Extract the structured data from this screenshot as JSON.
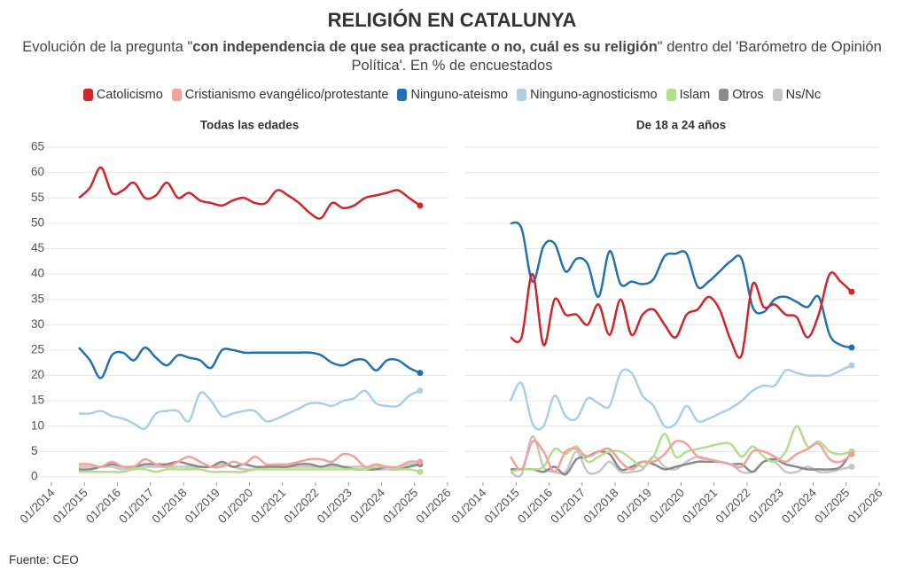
{
  "title": "RELIGIÓN EN CATALUNYA",
  "subtitle_parts": [
    "Evolución de la pregunta \"",
    "con independencia de que sea practicante o no, cuál es su religión",
    "\" dentro del 'Barómetro de Opinión Política'. En % de encuestados"
  ],
  "source": "Fuente: CEO",
  "chart_data": [
    {
      "type": "line",
      "title": "Todas las edades",
      "x": [
        "11/2014",
        "03/2015",
        "07/2015",
        "11/2015",
        "03/2016",
        "07/2016",
        "11/2016",
        "03/2017",
        "07/2017",
        "11/2017",
        "03/2018",
        "07/2018",
        "11/2018",
        "03/2019",
        "07/2019",
        "11/2019",
        "03/2020",
        "07/2020",
        "11/2020",
        "03/2021",
        "07/2021",
        "11/2021",
        "03/2022",
        "07/2022",
        "11/2022",
        "03/2023",
        "07/2023",
        "11/2023",
        "03/2024",
        "07/2024",
        "11/2024",
        "03/2025"
      ],
      "xlim": [
        "01/2014",
        "01/2026"
      ],
      "xticks": [
        "01/2014",
        "01/2015",
        "01/2016",
        "01/2017",
        "01/2018",
        "01/2019",
        "01/2020",
        "01/2021",
        "01/2022",
        "01/2023",
        "01/2024",
        "01/2025",
        "01/2026"
      ],
      "ylim": [
        0,
        65
      ],
      "yticks": [
        0,
        5,
        10,
        15,
        20,
        25,
        30,
        35,
        40,
        45,
        50,
        55,
        60,
        65
      ],
      "grid": true,
      "series": [
        {
          "name": "Catolicismo",
          "color": "#d0262b",
          "values": [
            55,
            57,
            61,
            56,
            56.5,
            58,
            55,
            55.5,
            58,
            55,
            56,
            54.5,
            54,
            53.5,
            54.5,
            55,
            54,
            54,
            56.5,
            55.5,
            54,
            52,
            51,
            54,
            53,
            53.5,
            55,
            55.5,
            56,
            56.5,
            55,
            53.5
          ]
        },
        {
          "name": "Cristianismo evangélico/protestante",
          "color": "#f2a19d",
          "values": [
            2.5,
            2.5,
            2,
            3,
            2,
            2,
            3.5,
            2.5,
            2,
            3,
            4,
            3,
            2,
            2,
            3,
            2.5,
            4,
            2.5,
            2.5,
            2.5,
            3,
            3.5,
            3.5,
            3,
            4.5,
            4,
            2,
            2.5,
            2,
            2,
            3,
            3
          ]
        },
        {
          "name": "Ninguno-ateismo",
          "color": "#2471b0",
          "values": [
            25.5,
            23,
            19.5,
            24,
            24.5,
            23,
            25.5,
            23.5,
            22,
            24,
            23.5,
            23,
            21.5,
            25,
            25,
            24.5,
            24.5,
            24.5,
            24.5,
            24.5,
            24.5,
            24.5,
            24,
            22.5,
            22,
            23,
            23,
            21,
            23,
            23,
            21.5,
            20.5
          ]
        },
        {
          "name": "Ninguno-agnosticismo",
          "color": "#a9d0e6",
          "values": [
            12.5,
            12.5,
            13,
            12,
            11.5,
            10.5,
            9.5,
            12.5,
            13,
            13,
            11,
            16.5,
            15,
            12,
            12.5,
            13,
            13,
            11,
            11.5,
            12.5,
            13.5,
            14.5,
            14.5,
            14,
            15,
            15.5,
            17,
            14.5,
            14,
            14,
            16,
            17
          ]
        },
        {
          "name": "Islam",
          "color": "#b2de8e",
          "values": [
            1,
            1,
            1,
            1,
            1,
            1.5,
            1.5,
            1,
            1.5,
            1.5,
            1.5,
            1.5,
            1,
            1,
            1,
            1,
            1.5,
            1.5,
            1.5,
            1.5,
            1.5,
            1.5,
            1.5,
            1.5,
            1.5,
            1.5,
            1.5,
            2,
            2,
            1.5,
            1.5,
            1
          ]
        },
        {
          "name": "Otros",
          "color": "#8a8a8a",
          "values": [
            1.5,
            1.5,
            2,
            2.5,
            2,
            2,
            2.5,
            2.5,
            2.5,
            3,
            2.5,
            2,
            2,
            3,
            2,
            2.5,
            2,
            2,
            2,
            2,
            2.5,
            2.5,
            2,
            2.5,
            2,
            1.5,
            1.5,
            1.5,
            2,
            1.5,
            2,
            2.5
          ]
        },
        {
          "name": "Ns/Nc",
          "color": "#c6c6c6",
          "values": [
            2,
            2,
            2,
            2,
            1.5,
            2,
            2,
            2,
            2,
            2,
            2,
            2,
            2,
            2.5,
            2,
            1.5,
            1.5,
            2,
            2,
            2,
            2,
            2,
            2,
            2,
            2,
            2,
            2,
            1.5,
            1.5,
            1.5,
            2.5,
            2.5
          ]
        }
      ]
    },
    {
      "type": "line",
      "title": "De 18 a 24 años",
      "x": [
        "11/2014",
        "03/2015",
        "07/2015",
        "11/2015",
        "03/2016",
        "07/2016",
        "11/2016",
        "03/2017",
        "07/2017",
        "11/2017",
        "03/2018",
        "07/2018",
        "11/2018",
        "03/2019",
        "07/2019",
        "11/2019",
        "03/2020",
        "07/2020",
        "11/2020",
        "03/2021",
        "07/2021",
        "11/2021",
        "03/2022",
        "07/2022",
        "11/2022",
        "03/2023",
        "07/2023",
        "11/2023",
        "03/2024",
        "07/2024",
        "11/2024",
        "03/2025"
      ],
      "xlim": [
        "01/2014",
        "01/2026"
      ],
      "xticks": [
        "01/2014",
        "01/2015",
        "01/2016",
        "01/2017",
        "01/2018",
        "01/2019",
        "01/2020",
        "01/2021",
        "01/2022",
        "01/2023",
        "01/2024",
        "01/2025",
        "01/2026"
      ],
      "ylim": [
        0,
        65
      ],
      "yticks": [
        0,
        5,
        10,
        15,
        20,
        25,
        30,
        35,
        40,
        45,
        50,
        55,
        60,
        65
      ],
      "grid": true,
      "series": [
        {
          "values": [
            27.5,
            27.5,
            40,
            26,
            35,
            32,
            32,
            30,
            34,
            28,
            35,
            28,
            32,
            33,
            30,
            27.5,
            32,
            33,
            35.5,
            33,
            27,
            24,
            38,
            33.5,
            34,
            32,
            31.5,
            27.5,
            32,
            40,
            38.5,
            36.5
          ]
        },
        {
          "values": [
            4,
            1.5,
            7,
            5,
            1,
            5,
            5.5,
            4,
            5,
            5.5,
            3,
            1.5,
            3,
            3,
            4.5,
            7,
            6.5,
            4,
            3.5,
            3,
            2.5,
            2,
            5,
            5,
            4,
            3,
            4.5,
            5.5,
            6.5,
            3.5,
            3,
            4.5
          ]
        },
        {
          "values": [
            50,
            49,
            38.5,
            45.5,
            46,
            40.5,
            43,
            42,
            35.5,
            44.5,
            38,
            38.5,
            38,
            39,
            43.5,
            44,
            44,
            37.5,
            38.5,
            40.5,
            42.5,
            43,
            33.5,
            32.5,
            35,
            35.5,
            34.5,
            33.5,
            35.5,
            28,
            26,
            25.5
          ]
        },
        {
          "values": [
            15,
            18.5,
            10.5,
            10,
            16,
            12,
            11.5,
            15.5,
            14.5,
            14,
            20.5,
            20.5,
            16,
            14,
            10,
            10.5,
            14,
            11,
            11.5,
            12.5,
            13.5,
            15,
            17,
            18,
            18,
            21,
            20.5,
            20,
            20,
            20,
            21,
            22
          ]
        },
        {
          "values": [
            1,
            1.5,
            1.5,
            2,
            5.5,
            4.5,
            6,
            3,
            4,
            5,
            5,
            3.5,
            2,
            4,
            8.5,
            4,
            5,
            5.5,
            6,
            6.5,
            6.5,
            4,
            6,
            4,
            3,
            5,
            10,
            6,
            7,
            5,
            4.5,
            5
          ]
        },
        {
          "values": [
            1.5,
            1.5,
            1.5,
            1,
            2,
            0.5,
            3.5,
            4,
            5,
            4.5,
            1.5,
            2,
            3,
            2.5,
            1.5,
            2,
            2.5,
            3,
            3,
            3,
            2.5,
            2.5,
            1,
            3,
            3.5,
            2.5,
            2,
            1.5,
            1.5,
            1.5,
            2,
            5
          ]
        },
        {
          "values": [
            1,
            0.5,
            8,
            2,
            1,
            1,
            5,
            1,
            1,
            3,
            1,
            1,
            1.5,
            4,
            2,
            1.5,
            3,
            4,
            3.5,
            3,
            2.5,
            1,
            1,
            3,
            3,
            1,
            1,
            2,
            1,
            1,
            1.5,
            2
          ]
        }
      ]
    }
  ]
}
